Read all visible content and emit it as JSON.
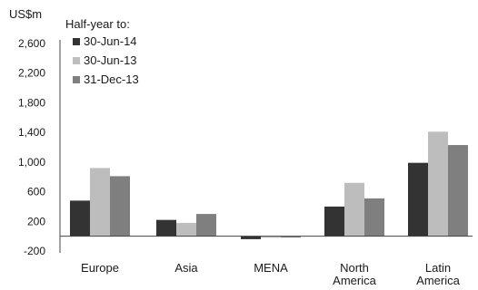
{
  "chart_data": {
    "type": "bar",
    "unit_label": "US$m",
    "categories": [
      [
        "Europe"
      ],
      [
        "Asia"
      ],
      [
        "MENA"
      ],
      [
        "North",
        "America"
      ],
      [
        "Latin",
        "America"
      ]
    ],
    "series": [
      {
        "name": "30-Jun-14",
        "color": "#333333",
        "values": [
          480,
          220,
          -40,
          400,
          990
        ]
      },
      {
        "name": "30-Jun-13",
        "color": "#bdbdbd",
        "values": [
          920,
          180,
          -20,
          720,
          1410
        ]
      },
      {
        "name": "31-Dec-13",
        "color": "#7f7f7f",
        "values": [
          810,
          300,
          -10,
          510,
          1230
        ]
      }
    ],
    "legend_title": "Half-year to:",
    "legend_position": "top-left",
    "yticks": [
      "2,600",
      "2,200",
      "1,800",
      "1,400",
      "1,000",
      "600",
      "200",
      "-200"
    ],
    "ytick_values": [
      2600,
      2200,
      1800,
      1400,
      1000,
      600,
      200,
      -200
    ],
    "ylim": [
      -200,
      2600
    ],
    "grid": false
  }
}
